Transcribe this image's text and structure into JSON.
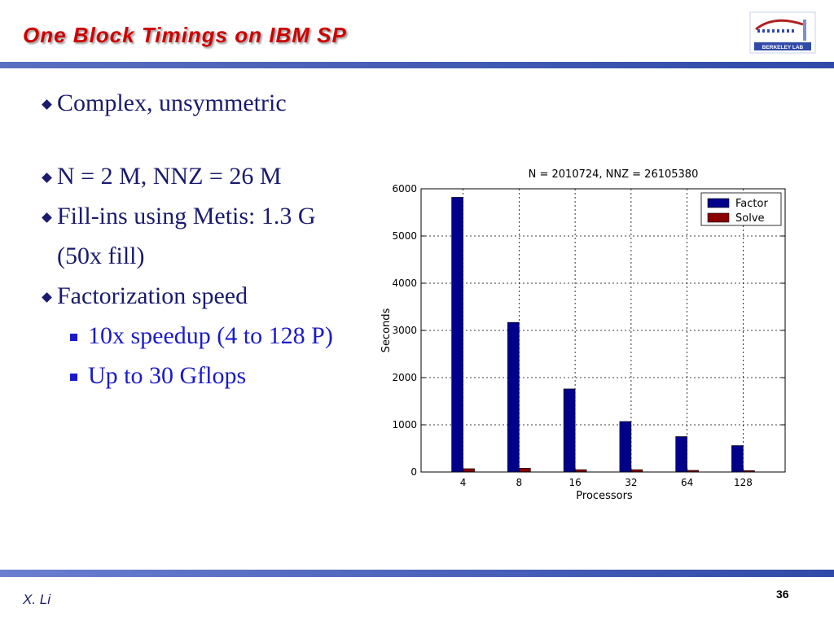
{
  "slide": {
    "title": "One Block Timings on IBM SP",
    "author": "X. Li",
    "page_number": "36",
    "logo_text": "BERKELEY LAB"
  },
  "bullets": [
    {
      "text": "Complex, unsymmetric",
      "level": 1
    },
    {
      "text": "N = 2 M, NNZ = 26 M",
      "level": 1
    },
    {
      "text": "Fill-ins using Metis: 1.3 G",
      "level": 1
    },
    {
      "text": "(50x fill)",
      "level": 1,
      "continuation": true
    },
    {
      "text": "Factorization speed",
      "level": 1
    },
    {
      "text": "10x speedup (4 to 128 P)",
      "level": 2
    },
    {
      "text": "Up to 30 Gflops",
      "level": 2
    }
  ],
  "colors": {
    "title": "#cc0000",
    "factor": "#00008b",
    "solve": "#8b0000",
    "bar": "#2f4aa8"
  },
  "chart_data": {
    "type": "bar",
    "title": "N = 2010724, NNZ = 26105380",
    "xlabel": "Processors",
    "ylabel": "Seconds",
    "categories": [
      "4",
      "8",
      "16",
      "32",
      "64",
      "128"
    ],
    "series": [
      {
        "name": "Factor",
        "values": [
          5820,
          3170,
          1760,
          1070,
          750,
          560
        ]
      },
      {
        "name": "Solve",
        "values": [
          70,
          80,
          50,
          50,
          35,
          30
        ]
      }
    ],
    "ylim": [
      0,
      6000
    ],
    "yticks": [
      0,
      1000,
      2000,
      3000,
      4000,
      5000,
      6000
    ],
    "grid": true,
    "legend": "top-right"
  }
}
